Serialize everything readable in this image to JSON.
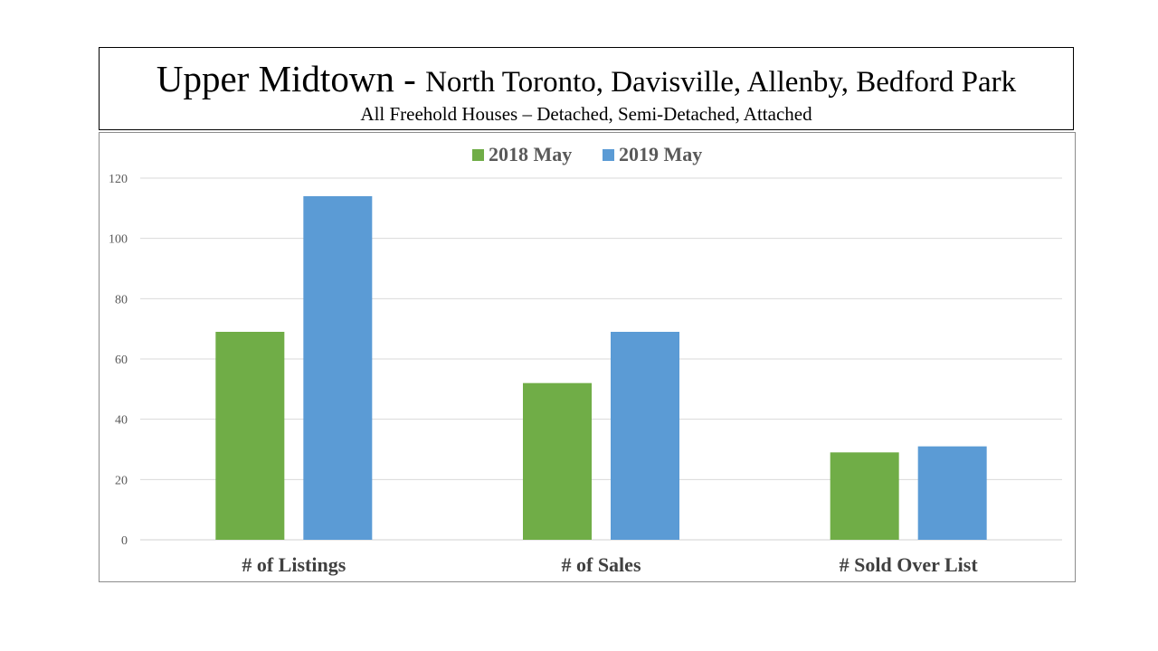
{
  "header": {
    "title_main": "Upper Midtown - ",
    "title_rest": "North Toronto, Davisville, Allenby, Bedford Park",
    "subtitle": "All Freehold Houses – Detached, Semi-Detached, Attached"
  },
  "chart_data": {
    "type": "bar",
    "categories": [
      "# of Listings",
      "# of Sales",
      "# Sold Over List"
    ],
    "series": [
      {
        "name": "2018 May",
        "values": [
          69,
          52,
          29
        ],
        "color": "#70AD47"
      },
      {
        "name": "2019 May",
        "values": [
          114,
          69,
          31
        ],
        "color": "#5B9BD5"
      }
    ],
    "ylim": [
      0,
      120
    ],
    "yticks": [
      "0",
      "20",
      "40",
      "60",
      "80",
      "100",
      "120"
    ],
    "grid": true,
    "legend": "top-center"
  }
}
